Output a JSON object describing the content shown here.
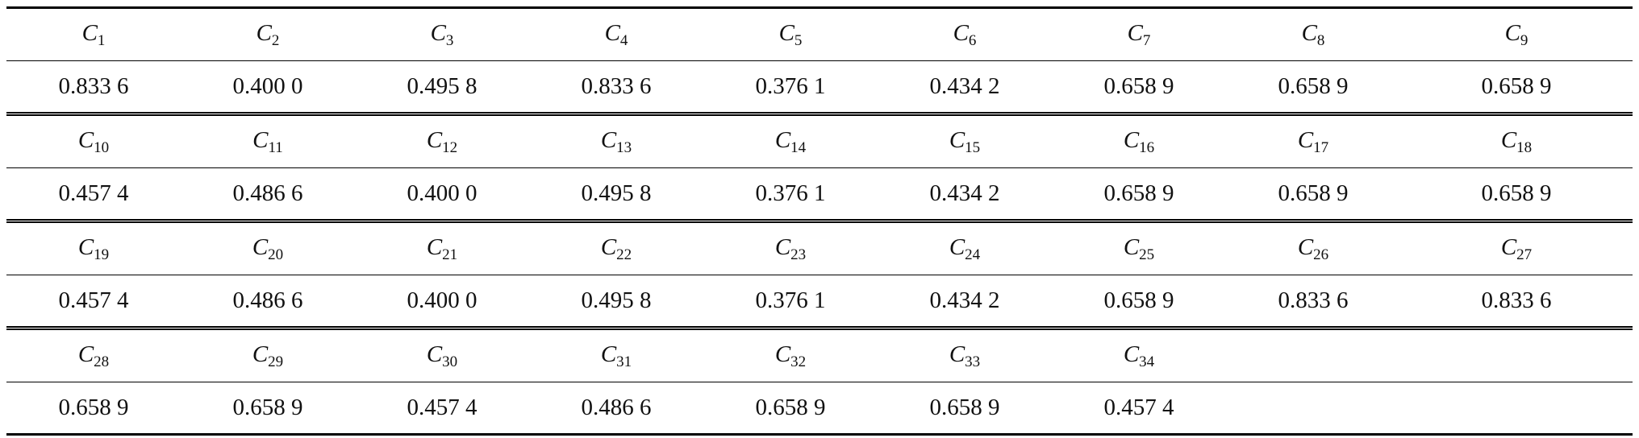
{
  "table": {
    "blocks": [
      {
        "headers": [
          {
            "base": "C",
            "sub": "1"
          },
          {
            "base": "C",
            "sub": "2"
          },
          {
            "base": "C",
            "sub": "3"
          },
          {
            "base": "C",
            "sub": "4"
          },
          {
            "base": "C",
            "sub": "5"
          },
          {
            "base": "C",
            "sub": "6"
          },
          {
            "base": "C",
            "sub": "7"
          },
          {
            "base": "C",
            "sub": "8"
          },
          {
            "base": "C",
            "sub": "9"
          }
        ],
        "values": [
          "0.833 6",
          "0.400 0",
          "0.495 8",
          "0.833 6",
          "0.376 1",
          "0.434 2",
          "0.658 9",
          "0.658 9",
          "0.658 9"
        ]
      },
      {
        "headers": [
          {
            "base": "C",
            "sub": "10"
          },
          {
            "base": "C",
            "sub": "11"
          },
          {
            "base": "C",
            "sub": "12"
          },
          {
            "base": "C",
            "sub": "13"
          },
          {
            "base": "C",
            "sub": "14"
          },
          {
            "base": "C",
            "sub": "15"
          },
          {
            "base": "C",
            "sub": "16"
          },
          {
            "base": "C",
            "sub": "17"
          },
          {
            "base": "C",
            "sub": "18"
          }
        ],
        "values": [
          "0.457 4",
          "0.486 6",
          "0.400 0",
          "0.495 8",
          "0.376 1",
          "0.434 2",
          "0.658 9",
          "0.658 9",
          "0.658 9"
        ]
      },
      {
        "headers": [
          {
            "base": "C",
            "sub": "19"
          },
          {
            "base": "C",
            "sub": "20"
          },
          {
            "base": "C",
            "sub": "21"
          },
          {
            "base": "C",
            "sub": "22"
          },
          {
            "base": "C",
            "sub": "23"
          },
          {
            "base": "C",
            "sub": "24"
          },
          {
            "base": "C",
            "sub": "25"
          },
          {
            "base": "C",
            "sub": "26"
          },
          {
            "base": "C",
            "sub": "27"
          }
        ],
        "values": [
          "0.457 4",
          "0.486 6",
          "0.400 0",
          "0.495 8",
          "0.376 1",
          "0.434 2",
          "0.658 9",
          "0.833 6",
          "0.833 6"
        ]
      },
      {
        "headers": [
          {
            "base": "C",
            "sub": "28"
          },
          {
            "base": "C",
            "sub": "29"
          },
          {
            "base": "C",
            "sub": "30"
          },
          {
            "base": "C",
            "sub": "31"
          },
          {
            "base": "C",
            "sub": "32"
          },
          {
            "base": "C",
            "sub": "33"
          },
          {
            "base": "C",
            "sub": "34"
          }
        ],
        "values": [
          "0.658 9",
          "0.658 9",
          "0.457 4",
          "0.486 6",
          "0.658 9",
          "0.658 9",
          "0.457 4"
        ]
      }
    ]
  }
}
